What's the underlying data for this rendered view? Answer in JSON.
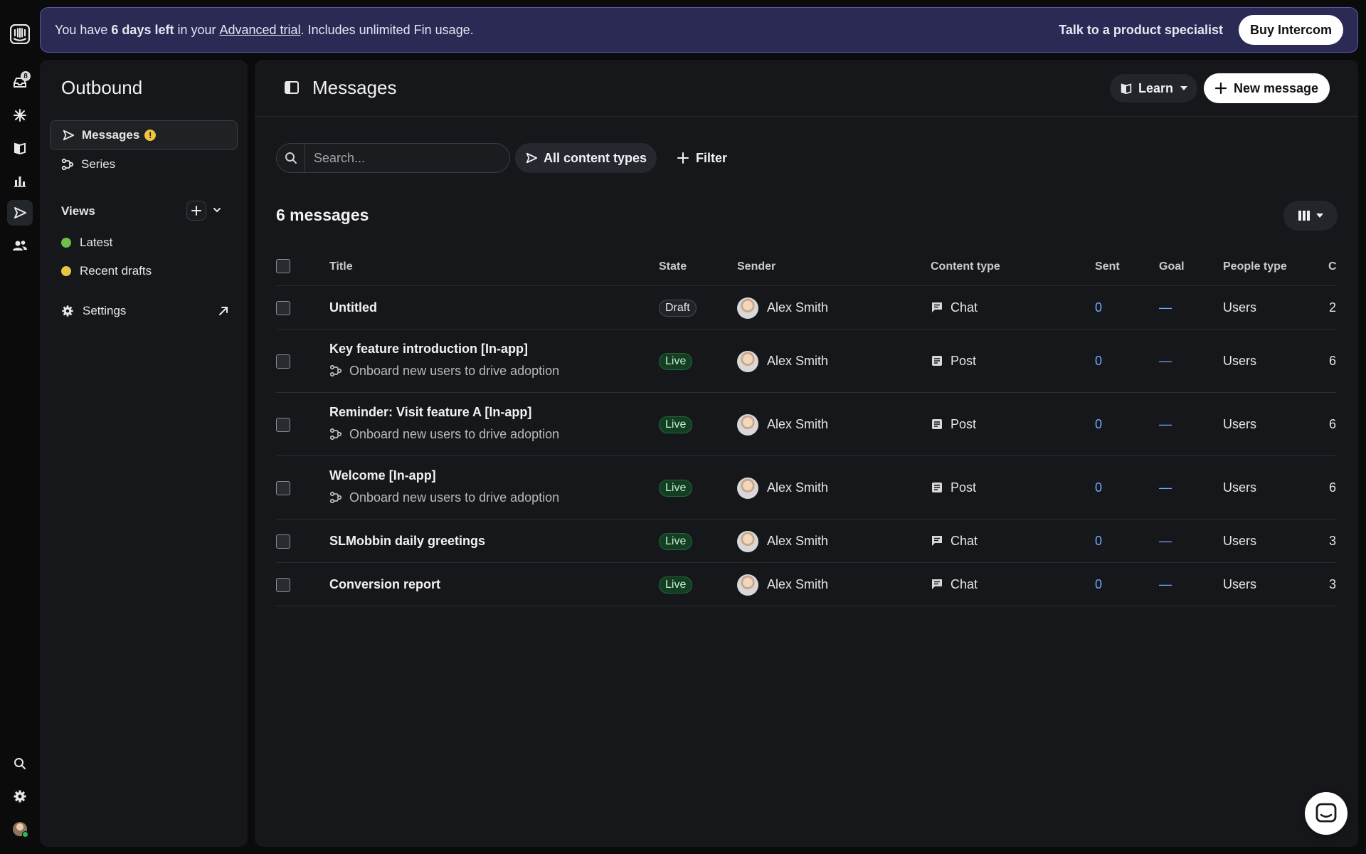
{
  "banner": {
    "prefix": "You have ",
    "days_left": "6 days left",
    "mid": " in your ",
    "trial_link": "Advanced trial",
    "suffix": ". Includes unlimited Fin usage.",
    "specialist_link": "Talk to a product specialist",
    "buy_button": "Buy Intercom"
  },
  "rail": {
    "inbox_badge": "8",
    "items": [
      "intercom-logo",
      "inbox-icon",
      "fin-icon",
      "knowledge-icon",
      "reports-icon",
      "outbound-icon",
      "contacts-icon"
    ],
    "bottom": [
      "search-icon",
      "settings-icon",
      "avatar"
    ]
  },
  "sidebar": {
    "title": "Outbound",
    "items": [
      {
        "label": "Messages",
        "warning": "!"
      },
      {
        "label": "Series"
      }
    ],
    "views_label": "Views",
    "views": [
      {
        "label": "Latest",
        "color": "#6cc04a"
      },
      {
        "label": "Recent drafts",
        "color": "#e6c640"
      }
    ],
    "settings_label": "Settings"
  },
  "main": {
    "title": "Messages",
    "learn_button": "Learn",
    "new_message_button": "New message",
    "search_placeholder": "Search...",
    "content_types_chip": "All content types",
    "filter_button": "Filter",
    "count_label": "6 messages"
  },
  "table": {
    "columns": [
      "Title",
      "State",
      "Sender",
      "Content type",
      "Sent",
      "Goal",
      "People type",
      "C"
    ],
    "rows": [
      {
        "title": "Untitled",
        "series": "",
        "state": "Draft",
        "sender": "Alex Smith",
        "content_type": "Chat",
        "sent": "0",
        "goal": "—",
        "people_type": "Users",
        "c": "2"
      },
      {
        "title": "Key feature introduction [In-app]",
        "series": "Onboard new users to drive adoption",
        "state": "Live",
        "sender": "Alex Smith",
        "content_type": "Post",
        "sent": "0",
        "goal": "—",
        "people_type": "Users",
        "c": "6"
      },
      {
        "title": "Reminder: Visit feature A [In-app]",
        "series": "Onboard new users to drive adoption",
        "state": "Live",
        "sender": "Alex Smith",
        "content_type": "Post",
        "sent": "0",
        "goal": "—",
        "people_type": "Users",
        "c": "6"
      },
      {
        "title": "Welcome [In-app]",
        "series": "Onboard new users to drive adoption",
        "state": "Live",
        "sender": "Alex Smith",
        "content_type": "Post",
        "sent": "0",
        "goal": "—",
        "people_type": "Users",
        "c": "6"
      },
      {
        "title": "SLMobbin daily greetings",
        "series": "",
        "state": "Live",
        "sender": "Alex Smith",
        "content_type": "Chat",
        "sent": "0",
        "goal": "—",
        "people_type": "Users",
        "c": "3"
      },
      {
        "title": "Conversion report",
        "series": "",
        "state": "Live",
        "sender": "Alex Smith",
        "content_type": "Chat",
        "sent": "0",
        "goal": "—",
        "people_type": "Users",
        "c": "3"
      }
    ]
  },
  "colors": {
    "banner_bg": "#2b2a55",
    "live_pill": "#143d23",
    "link_blue": "#6fa8ff"
  }
}
